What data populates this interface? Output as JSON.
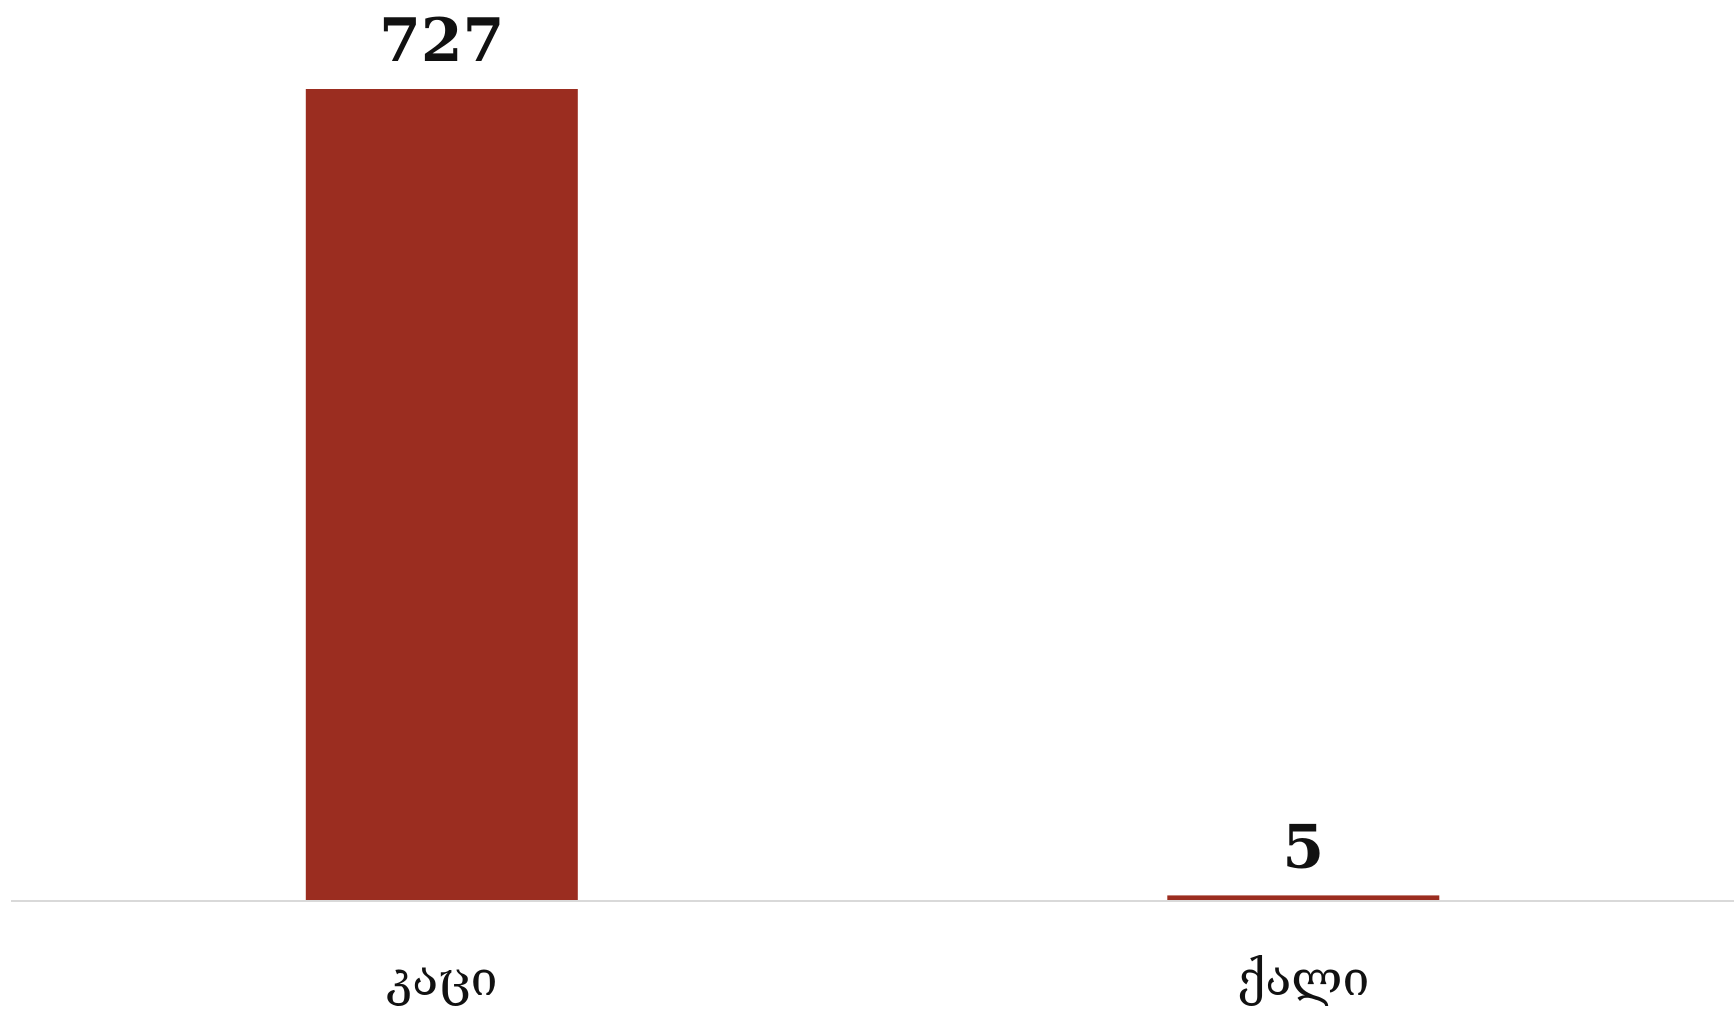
{
  "chart_data": {
    "type": "bar",
    "categories": [
      "კაცი",
      "ქალი"
    ],
    "values": [
      727,
      5
    ],
    "ylim": [
      0,
      727
    ],
    "grid": false,
    "legend": "none",
    "bar_color": "#9B2D20",
    "axis_color": "#D9D9D9",
    "text_color": "#111111"
  }
}
